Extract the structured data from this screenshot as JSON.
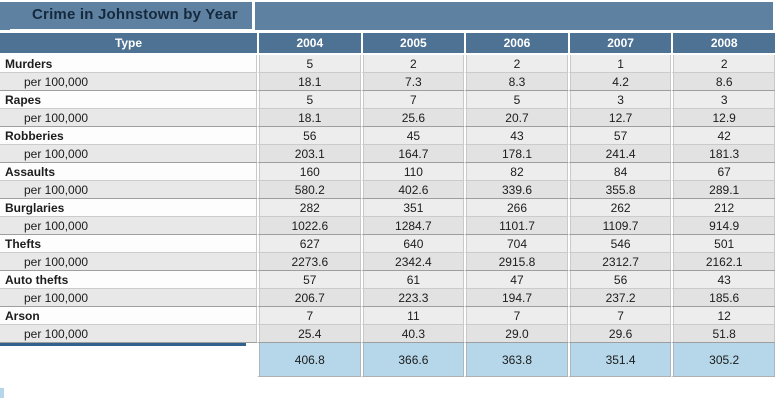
{
  "title": "Crime in Johnstown by Year",
  "chart_data": {
    "type": "table",
    "title": "Crime in Johnstown by Year",
    "columns": [
      "Type",
      "2004",
      "2005",
      "2006",
      "2007",
      "2008"
    ],
    "per_capita_row_label": "per 100,000",
    "rows": [
      {
        "label": "Murders",
        "counts": [
          "5",
          "2",
          "2",
          "1",
          "2"
        ],
        "per_100000": [
          "18.1",
          "7.3",
          "8.3",
          "4.2",
          "8.6"
        ]
      },
      {
        "label": "Rapes",
        "counts": [
          "5",
          "7",
          "5",
          "3",
          "3"
        ],
        "per_100000": [
          "18.1",
          "25.6",
          "20.7",
          "12.7",
          "12.9"
        ]
      },
      {
        "label": "Robberies",
        "counts": [
          "56",
          "45",
          "43",
          "57",
          "42"
        ],
        "per_100000": [
          "203.1",
          "164.7",
          "178.1",
          "241.4",
          "181.3"
        ]
      },
      {
        "label": "Assaults",
        "counts": [
          "160",
          "110",
          "82",
          "84",
          "67"
        ],
        "per_100000": [
          "580.2",
          "402.6",
          "339.6",
          "355.8",
          "289.1"
        ]
      },
      {
        "label": "Burglaries",
        "counts": [
          "282",
          "351",
          "266",
          "262",
          "212"
        ],
        "per_100000": [
          "1022.6",
          "1284.7",
          "1101.7",
          "1109.7",
          "914.9"
        ]
      },
      {
        "label": "Thefts",
        "counts": [
          "627",
          "640",
          "704",
          "546",
          "501"
        ],
        "per_100000": [
          "2273.6",
          "2342.4",
          "2915.8",
          "2312.7",
          "2162.1"
        ]
      },
      {
        "label": "Auto thefts",
        "counts": [
          "57",
          "61",
          "47",
          "56",
          "43"
        ],
        "per_100000": [
          "206.7",
          "223.3",
          "194.7",
          "237.2",
          "185.6"
        ]
      },
      {
        "label": "Arson",
        "counts": [
          "7",
          "11",
          "7",
          "7",
          "12"
        ],
        "per_100000": [
          "25.4",
          "40.3",
          "29.0",
          "29.6",
          "51.8"
        ]
      }
    ],
    "footer_values": [
      "406.8",
      "366.6",
      "363.8",
      "351.4",
      "305.2"
    ]
  },
  "colors": {
    "title_bar": "#5E81A2",
    "header_row": "#4E7294",
    "title_text": "#15293D",
    "header_text": "#FFFFFF",
    "crime_row_bg": "#EDEDED",
    "per_row_bg": "#E2E2E2",
    "footer_highlight": "#B5D7E9",
    "footer_accent_line": "#33618E"
  }
}
